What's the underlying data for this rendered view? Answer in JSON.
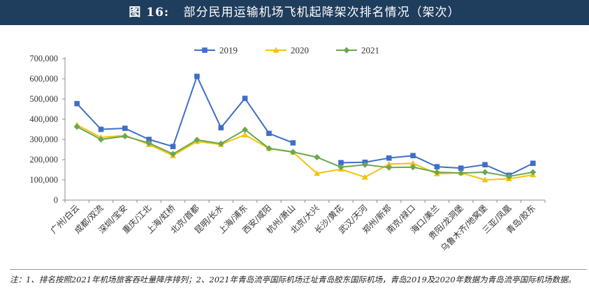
{
  "header": {
    "figure_no": "图 16:",
    "title": "部分民用运输机场飞机起降架次排名情况（架次）"
  },
  "note": "注：1、排名按照2021年机场旅客吞吐量降序排列；2、2021年青岛流亭国际机场迁址青岛胶东国际机场，青岛2019及2020年数据为青岛流亭国际机场数据。",
  "chart_data": {
    "type": "line",
    "title": "部分民用运输机场飞机起降架次排名情况（架次）",
    "xlabel": "",
    "ylabel": "",
    "ylim": [
      0,
      700000
    ],
    "yticks": [
      0,
      100000,
      200000,
      300000,
      400000,
      500000,
      600000,
      700000
    ],
    "ytick_labels": [
      "0",
      "100,000",
      "200,000",
      "300,000",
      "400,000",
      "500,000",
      "600,000",
      "700,000"
    ],
    "grid": false,
    "legend_position": "top-center",
    "categories": [
      "广州/白云",
      "成都/双流",
      "深圳/宝安",
      "重庆/江北",
      "上海/虹桥",
      "北京/首都",
      "昆明/长水",
      "上海/浦东",
      "西安/咸阳",
      "杭州/萧山",
      "北京/大兴",
      "长沙/黄花",
      "武汉/天河",
      "郑州/新郑",
      "南京/禄口",
      "海口/美兰",
      "贵阳/龙洞堡",
      "乌鲁木齐/地窝堡",
      "三亚/凤凰",
      "青岛/胶东"
    ],
    "series": [
      {
        "name": "2019",
        "color": "#3f6fc4",
        "marker": "square",
        "values": [
          477000,
          350000,
          355000,
          300000,
          265000,
          612000,
          358000,
          503000,
          330000,
          283000,
          null,
          185000,
          187000,
          208000,
          220000,
          165000,
          158000,
          175000,
          123000,
          182000
        ]
      },
      {
        "name": "2020",
        "color": "#f4c20d",
        "marker": "triangle",
        "values": [
          372000,
          310000,
          320000,
          275000,
          220000,
          290000,
          275000,
          323000,
          255000,
          237000,
          132000,
          153000,
          113000,
          178000,
          182000,
          130000,
          135000,
          100000,
          105000,
          125000
        ]
      },
      {
        "name": "2021",
        "color": "#6aa84f",
        "marker": "diamond",
        "values": [
          363000,
          300000,
          316000,
          282000,
          228000,
          298000,
          279000,
          348000,
          256000,
          238000,
          212000,
          163000,
          175000,
          161000,
          163000,
          138000,
          134000,
          138000,
          117000,
          138000
        ]
      }
    ]
  }
}
